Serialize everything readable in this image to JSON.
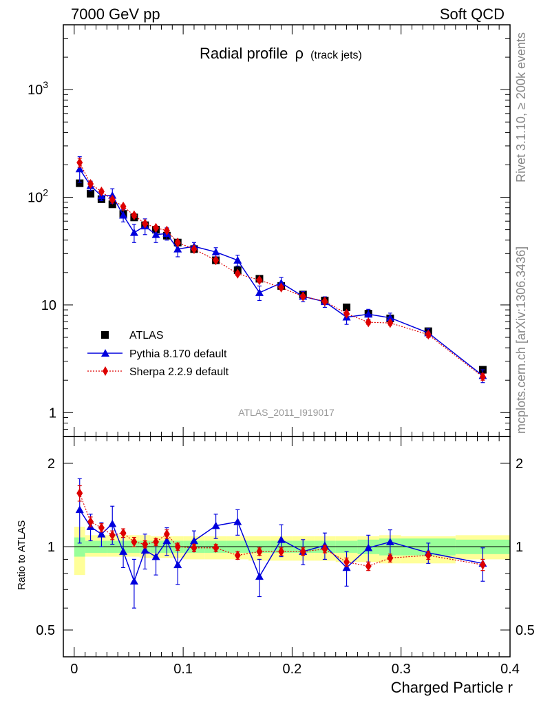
{
  "header": {
    "left_title": "7000 GeV pp",
    "right_title": "Soft QCD"
  },
  "side_labels": {
    "rivet": "Rivet 3.1.10, ≥ 200k events",
    "mcplots": "mcplots.cern.ch [arXiv:1306.3436]"
  },
  "analysis_id": "ATLAS_2011_I919017",
  "chart_data": [
    {
      "type": "scatter",
      "panel": "main",
      "title": "Radial profile",
      "title_symbol": "ρ",
      "title_suffix": "(track jets)",
      "yscale": "log",
      "ylim": [
        0.6,
        4000
      ],
      "xlim": [
        -0.01,
        0.4
      ],
      "y_ticks": [
        {
          "value": 1,
          "label": "1"
        },
        {
          "value": 10,
          "label": "10"
        },
        {
          "value": 100,
          "label": "10",
          "sup": "2"
        },
        {
          "value": 1000,
          "label": "10",
          "sup": "3"
        }
      ],
      "legend": [
        "ATLAS",
        "Pythia 8.170 default",
        "Sherpa 2.2.9 default"
      ],
      "series": [
        {
          "name": "ATLAS",
          "color": "#000000",
          "marker": "square",
          "x": [
            0.005,
            0.015,
            0.025,
            0.035,
            0.045,
            0.055,
            0.065,
            0.075,
            0.085,
            0.095,
            0.11,
            0.13,
            0.15,
            0.17,
            0.19,
            0.21,
            0.23,
            0.25,
            0.27,
            0.29,
            0.325,
            0.375
          ],
          "values": [
            135,
            108,
            96,
            86,
            70,
            65,
            55,
            50,
            44,
            38,
            33,
            26,
            21,
            17.5,
            15,
            12.5,
            11,
            9.5,
            8.3,
            7.5,
            5.7,
            2.5
          ]
        },
        {
          "name": "Pythia 8.170 default",
          "color": "#0000dd",
          "marker": "triangle",
          "x": [
            0.005,
            0.015,
            0.025,
            0.035,
            0.045,
            0.055,
            0.065,
            0.075,
            0.085,
            0.095,
            0.11,
            0.13,
            0.15,
            0.17,
            0.19,
            0.21,
            0.23,
            0.25,
            0.27,
            0.29,
            0.325,
            0.375
          ],
          "values": [
            183,
            128,
            103,
            104,
            68,
            47,
            54,
            45,
            46,
            33,
            35,
            31,
            26,
            13,
            16,
            12,
            10.7,
            7.7,
            8.2,
            7.6,
            5.5,
            2.2
          ],
          "err_low": [
            45,
            13,
            10,
            16,
            9,
            9,
            9,
            7,
            6,
            5,
            3,
            3,
            3,
            2,
            2,
            1.3,
            1.2,
            1.1,
            0.9,
            0.8,
            0.5,
            0.3
          ],
          "err_high": [
            55,
            13,
            10,
            16,
            9,
            9,
            9,
            7,
            6,
            5,
            3,
            3,
            3,
            2,
            2,
            1.3,
            1.2,
            1.1,
            0.9,
            0.8,
            0.5,
            0.3
          ]
        },
        {
          "name": "Sherpa 2.2.9 default",
          "color": "#dd0000",
          "marker": "diamond",
          "x": [
            0.005,
            0.015,
            0.025,
            0.035,
            0.045,
            0.055,
            0.065,
            0.075,
            0.085,
            0.095,
            0.11,
            0.13,
            0.15,
            0.17,
            0.19,
            0.21,
            0.23,
            0.25,
            0.27,
            0.29,
            0.325,
            0.375
          ],
          "values": [
            210,
            133,
            113,
            95,
            82,
            68,
            57,
            52,
            49,
            38,
            33,
            26,
            19.5,
            17,
            14.5,
            12,
            10.8,
            8.3,
            6.9,
            6.8,
            5.3,
            2.15
          ],
          "err_low": [
            20,
            6,
            5,
            4,
            3,
            3,
            2,
            2,
            2,
            1.5,
            1,
            1,
            0.8,
            0.7,
            0.6,
            0.5,
            0.4,
            0.4,
            0.3,
            0.3,
            0.3,
            0.15
          ],
          "err_high": [
            20,
            6,
            5,
            4,
            3,
            3,
            2,
            2,
            2,
            1.5,
            1,
            1,
            0.8,
            0.7,
            0.6,
            0.5,
            0.4,
            0.4,
            0.3,
            0.3,
            0.3,
            0.15
          ]
        }
      ]
    },
    {
      "type": "scatter",
      "panel": "ratio",
      "ylabel": "Ratio to ATLAS",
      "xlabel": "Charged Particle r",
      "yscale": "log",
      "ylim": [
        0.4,
        2.5
      ],
      "xlim": [
        -0.01,
        0.4
      ],
      "x_ticks": [
        {
          "value": 0,
          "label": "0"
        },
        {
          "value": 0.1,
          "label": "0.1"
        },
        {
          "value": 0.2,
          "label": "0.2"
        },
        {
          "value": 0.3,
          "label": "0.3"
        },
        {
          "value": 0.4,
          "label": "0.4"
        }
      ],
      "y_ticks": [
        {
          "value": 0.5,
          "label": "0.5"
        },
        {
          "value": 1,
          "label": "1"
        },
        {
          "value": 2,
          "label": "2"
        }
      ],
      "bands": {
        "edges": [
          0,
          0.01,
          0.02,
          0.03,
          0.04,
          0.05,
          0.06,
          0.07,
          0.08,
          0.09,
          0.1,
          0.12,
          0.14,
          0.16,
          0.18,
          0.2,
          0.22,
          0.24,
          0.26,
          0.28,
          0.3,
          0.35,
          0.4
        ],
        "total_low": [
          0.79,
          0.92,
          0.92,
          0.92,
          0.92,
          0.92,
          0.91,
          0.91,
          0.91,
          0.91,
          0.9,
          0.9,
          0.9,
          0.89,
          0.89,
          0.89,
          0.89,
          0.88,
          0.88,
          0.87,
          0.87,
          0.9
        ],
        "total_high": [
          1.18,
          1.1,
          1.1,
          1.1,
          1.1,
          1.1,
          1.1,
          1.09,
          1.09,
          1.09,
          1.09,
          1.09,
          1.09,
          1.09,
          1.09,
          1.09,
          1.09,
          1.09,
          1.09,
          1.1,
          1.09,
          1.1
        ],
        "stat_low": [
          0.92,
          0.95,
          0.95,
          0.95,
          0.95,
          0.95,
          0.95,
          0.95,
          0.95,
          0.95,
          0.95,
          0.95,
          0.95,
          0.95,
          0.95,
          0.95,
          0.95,
          0.95,
          0.94,
          0.93,
          0.93,
          0.94
        ],
        "stat_high": [
          1.08,
          1.05,
          1.05,
          1.05,
          1.05,
          1.05,
          1.05,
          1.05,
          1.05,
          1.05,
          1.05,
          1.05,
          1.05,
          1.05,
          1.05,
          1.05,
          1.05,
          1.05,
          1.06,
          1.07,
          1.07,
          1.06
        ]
      },
      "series": [
        {
          "name": "Pythia 8.170 default",
          "color": "#0000dd",
          "marker": "triangle",
          "x": [
            0.005,
            0.015,
            0.025,
            0.035,
            0.045,
            0.055,
            0.065,
            0.075,
            0.085,
            0.095,
            0.11,
            0.13,
            0.15,
            0.17,
            0.19,
            0.21,
            0.23,
            0.25,
            0.27,
            0.29,
            0.325,
            0.375
          ],
          "values": [
            1.36,
            1.18,
            1.11,
            1.21,
            0.96,
            0.75,
            0.97,
            0.92,
            1.05,
            0.86,
            1.05,
            1.19,
            1.23,
            0.78,
            1.06,
            0.96,
            1.01,
            0.84,
            0.99,
            1.04,
            0.95,
            0.87
          ],
          "err_low": [
            0.33,
            0.13,
            0.11,
            0.19,
            0.12,
            0.15,
            0.14,
            0.13,
            0.12,
            0.13,
            0.09,
            0.12,
            0.13,
            0.12,
            0.14,
            0.1,
            0.11,
            0.12,
            0.11,
            0.11,
            0.08,
            0.12
          ],
          "err_high": [
            0.4,
            0.13,
            0.11,
            0.19,
            0.12,
            0.15,
            0.14,
            0.13,
            0.12,
            0.13,
            0.09,
            0.12,
            0.13,
            0.12,
            0.14,
            0.1,
            0.11,
            0.12,
            0.11,
            0.11,
            0.08,
            0.12
          ]
        },
        {
          "name": "Sherpa 2.2.9 default",
          "color": "#dd0000",
          "marker": "diamond",
          "x": [
            0.005,
            0.015,
            0.025,
            0.035,
            0.045,
            0.055,
            0.065,
            0.075,
            0.085,
            0.095,
            0.11,
            0.13,
            0.15,
            0.17,
            0.19,
            0.21,
            0.23,
            0.25,
            0.27,
            0.29,
            0.325,
            0.375
          ],
          "values": [
            1.56,
            1.23,
            1.17,
            1.1,
            1.12,
            1.04,
            1.02,
            1.04,
            1.11,
            1.0,
            0.99,
            0.99,
            0.93,
            0.96,
            0.96,
            0.96,
            0.98,
            0.88,
            0.85,
            0.91,
            0.93,
            0.86
          ],
          "err_low": [
            0.1,
            0.05,
            0.04,
            0.04,
            0.04,
            0.04,
            0.03,
            0.03,
            0.04,
            0.03,
            0.03,
            0.03,
            0.03,
            0.03,
            0.03,
            0.03,
            0.03,
            0.03,
            0.03,
            0.03,
            0.03,
            0.04
          ],
          "err_high": [
            0.1,
            0.05,
            0.04,
            0.04,
            0.04,
            0.04,
            0.03,
            0.03,
            0.04,
            0.03,
            0.03,
            0.03,
            0.03,
            0.03,
            0.03,
            0.03,
            0.03,
            0.03,
            0.03,
            0.03,
            0.03,
            0.04
          ]
        }
      ]
    }
  ]
}
